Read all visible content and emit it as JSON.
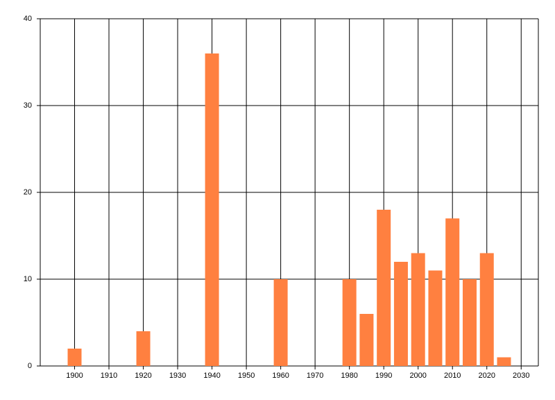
{
  "chart_data": {
    "type": "bar",
    "x": [
      1900,
      1920,
      1940,
      1960,
      1980,
      1985,
      1990,
      1995,
      2000,
      2005,
      2010,
      2015,
      2020,
      2025
    ],
    "values": [
      2,
      4,
      36,
      10,
      10,
      6,
      18,
      12,
      13,
      11,
      17,
      10,
      13,
      1
    ],
    "color": "#ff8040",
    "xlim": [
      1890,
      2035
    ],
    "xticks": [
      1900,
      1910,
      1920,
      1930,
      1940,
      1950,
      1960,
      1970,
      1980,
      1990,
      2000,
      2010,
      2020,
      2030
    ],
    "ylim": [
      0,
      40
    ],
    "yticks": [
      0,
      10,
      20,
      30,
      40
    ],
    "grid": true
  }
}
